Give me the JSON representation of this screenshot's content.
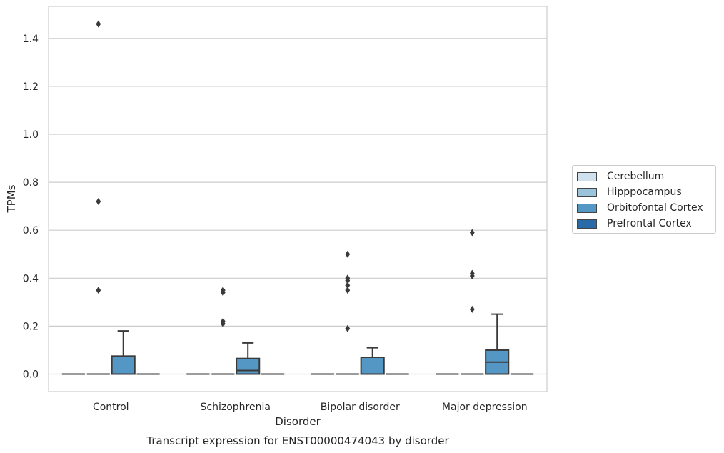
{
  "chart_data": {
    "type": "box",
    "title": "Transcript expression for ENST00000474043 by disorder",
    "xlabel": "Disorder",
    "ylabel": "TPMs",
    "ylim": [
      -0.07,
      1.535
    ],
    "yticks": [
      0.0,
      0.2,
      0.4,
      0.6,
      0.8,
      1.0,
      1.2,
      1.4
    ],
    "ytick_labels": [
      "0.0",
      "0.2",
      "0.4",
      "0.6",
      "0.8",
      "1.0",
      "1.2",
      "1.4"
    ],
    "categories": [
      "Control",
      "Schizophrenia",
      "Bipolar disorder",
      "Major depression"
    ],
    "grid": "horizontal",
    "legend_position": "right",
    "series": [
      {
        "name": "Cerebellum",
        "color": "#cfe0ef",
        "boxes": [
          {
            "q1": 0,
            "median": 0,
            "q3": 0,
            "whisker_low": 0,
            "whisker_high": 0,
            "outliers": []
          },
          {
            "q1": 0,
            "median": 0,
            "q3": 0,
            "whisker_low": 0,
            "whisker_high": 0,
            "outliers": []
          },
          {
            "q1": 0,
            "median": 0,
            "q3": 0,
            "whisker_low": 0,
            "whisker_high": 0,
            "outliers": []
          },
          {
            "q1": 0,
            "median": 0,
            "q3": 0,
            "whisker_low": 0,
            "whisker_high": 0,
            "outliers": []
          }
        ]
      },
      {
        "name": "Hipppocampus",
        "color": "#9cc3dc",
        "boxes": [
          {
            "q1": 0,
            "median": 0,
            "q3": 0,
            "whisker_low": 0,
            "whisker_high": 0,
            "outliers": [
              1.46,
              0.72,
              0.35
            ]
          },
          {
            "q1": 0,
            "median": 0,
            "q3": 0,
            "whisker_low": 0,
            "whisker_high": 0,
            "outliers": [
              0.35,
              0.34,
              0.22,
              0.21
            ]
          },
          {
            "q1": 0,
            "median": 0,
            "q3": 0,
            "whisker_low": 0,
            "whisker_high": 0,
            "outliers": [
              0.5,
              0.4,
              0.35,
              0.37,
              0.39,
              0.19
            ]
          },
          {
            "q1": 0,
            "median": 0,
            "q3": 0,
            "whisker_low": 0,
            "whisker_high": 0,
            "outliers": [
              0.42,
              0.41,
              0.27,
              0.59
            ]
          }
        ]
      },
      {
        "name": "Orbitofontal Cortex",
        "color": "#5597c4",
        "boxes": [
          {
            "q1": 0,
            "median": 0,
            "q3": 0.075,
            "whisker_low": 0,
            "whisker_high": 0.18,
            "outliers": []
          },
          {
            "q1": 0,
            "median": 0.015,
            "q3": 0.065,
            "whisker_low": 0,
            "whisker_high": 0.13,
            "outliers": []
          },
          {
            "q1": 0,
            "median": 0,
            "q3": 0.07,
            "whisker_low": 0,
            "whisker_high": 0.11,
            "outliers": []
          },
          {
            "q1": 0,
            "median": 0.05,
            "q3": 0.1,
            "whisker_low": 0,
            "whisker_high": 0.25,
            "outliers": []
          }
        ]
      },
      {
        "name": "Prefrontal Cortex",
        "color": "#2a6aa6",
        "boxes": [
          {
            "q1": 0,
            "median": 0,
            "q3": 0,
            "whisker_low": 0,
            "whisker_high": 0,
            "outliers": []
          },
          {
            "q1": 0,
            "median": 0,
            "q3": 0,
            "whisker_low": 0,
            "whisker_high": 0,
            "outliers": []
          },
          {
            "q1": 0,
            "median": 0,
            "q3": 0,
            "whisker_low": 0,
            "whisker_high": 0,
            "outliers": []
          },
          {
            "q1": 0,
            "median": 0,
            "q3": 0,
            "whisker_low": 0,
            "whisker_high": 0,
            "outliers": []
          }
        ]
      }
    ]
  }
}
